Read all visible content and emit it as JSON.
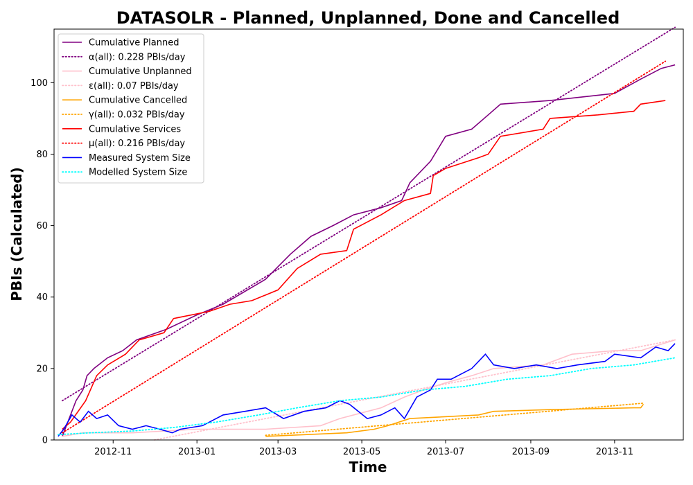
{
  "chart_data": {
    "type": "line",
    "title": "DATASOLR - Planned, Unplanned, Done  and Cancelled",
    "xlabel": "Time",
    "ylabel": "PBIs (Calculated)",
    "xlim": [
      "2012-09-19",
      "2013-12-21"
    ],
    "ylim": [
      0,
      115
    ],
    "xticks": [
      "2012-11",
      "2013-01",
      "2013-03",
      "2013-05",
      "2013-07",
      "2013-09",
      "2013-11"
    ],
    "yticks": [
      0,
      20,
      40,
      60,
      80,
      100
    ],
    "grid": false,
    "legend_position": "top-left",
    "series": [
      {
        "name": "Cumulative Planned",
        "color": "#800080",
        "style": "solid",
        "x": [
          "2012-09-25",
          "2012-09-30",
          "2012-10-05",
          "2012-10-10",
          "2012-10-13",
          "2012-10-18",
          "2012-10-28",
          "2012-11-08",
          "2012-11-18",
          "2012-12-10",
          "2013-01-01",
          "2013-01-20",
          "2013-02-20",
          "2013-03-10",
          "2013-03-25",
          "2013-04-10",
          "2013-04-25",
          "2013-05-15",
          "2013-05-30",
          "2013-06-05",
          "2013-06-20",
          "2013-07-01",
          "2013-07-20",
          "2013-08-01",
          "2013-08-10",
          "2013-09-15",
          "2013-11-01",
          "2013-11-20",
          "2013-12-05",
          "2013-12-15"
        ],
        "values": [
          1,
          6,
          11,
          14,
          18,
          20,
          23,
          25,
          28,
          31,
          35,
          38,
          45,
          52,
          57,
          60,
          63,
          65,
          67,
          72,
          78,
          85,
          87,
          91,
          94,
          95,
          97,
          101,
          104,
          105
        ]
      },
      {
        "name": "α(all): 0.228 PBIs/day",
        "color": "#800080",
        "style": "dotted",
        "x": [
          "2012-09-25",
          "2013-12-15"
        ],
        "values": [
          11,
          115.5
        ]
      },
      {
        "name": "Cumulative Unplanned",
        "color": "#ffc0cb",
        "style": "solid",
        "x": [
          "2012-09-25",
          "2012-10-10",
          "2012-11-15",
          "2013-01-01",
          "2013-02-20",
          "2013-04-01",
          "2013-04-15",
          "2013-05-15",
          "2013-06-01",
          "2013-06-15",
          "2013-07-01",
          "2013-07-20",
          "2013-08-05",
          "2013-09-10",
          "2013-10-01",
          "2013-11-01",
          "2013-11-20",
          "2013-12-15"
        ],
        "values": [
          1,
          2,
          2,
          3,
          3,
          4,
          6,
          9,
          12,
          14,
          16,
          18,
          20,
          21,
          24,
          25,
          25,
          28
        ]
      },
      {
        "name": "ε(all): 0.07 PBIs/day",
        "color": "#ffc0cb",
        "style": "dotted",
        "x": [
          "2012-12-01",
          "2013-12-15"
        ],
        "values": [
          0,
          28
        ]
      },
      {
        "name": "Cumulative Cancelled",
        "color": "#ffa500",
        "style": "solid",
        "x": [
          "2013-02-20",
          "2013-04-20",
          "2013-05-10",
          "2013-05-20",
          "2013-06-05",
          "2013-07-25",
          "2013-08-05",
          "2013-09-15",
          "2013-11-15",
          "2013-11-20",
          "2013-11-22"
        ],
        "values": [
          1,
          2,
          3,
          4,
          6,
          7,
          8,
          8.5,
          9,
          9,
          10
        ]
      },
      {
        "name": "γ(all): 0.032 PBIs/day",
        "color": "#ffa500",
        "style": "dotted",
        "x": [
          "2013-02-20",
          "2013-11-22"
        ],
        "values": [
          1.3,
          10.3
        ]
      },
      {
        "name": "Cumulative Services",
        "color": "#ff0000",
        "style": "solid",
        "x": [
          "2012-09-25",
          "2012-10-01",
          "2012-10-12",
          "2012-10-20",
          "2012-10-28",
          "2012-11-10",
          "2012-11-20",
          "2012-12-08",
          "2012-12-15",
          "2013-01-10",
          "2013-01-25",
          "2013-02-10",
          "2013-03-01",
          "2013-03-15",
          "2013-04-01",
          "2013-04-20",
          "2013-04-25",
          "2013-05-15",
          "2013-06-01",
          "2013-06-20",
          "2013-06-22",
          "2013-07-01",
          "2013-07-25",
          "2013-08-01",
          "2013-08-10",
          "2013-09-10",
          "2013-09-15",
          "2013-10-20",
          "2013-11-15",
          "2013-11-20",
          "2013-12-08"
        ],
        "values": [
          3,
          5,
          11,
          18,
          21,
          24,
          28,
          30,
          34,
          36,
          38,
          39,
          42,
          48,
          52,
          53,
          59,
          63,
          67,
          69,
          74,
          76,
          79,
          80,
          85,
          87,
          90,
          91,
          92,
          94,
          95
        ]
      },
      {
        "name": "μ(all): 0.216 PBIs/day",
        "color": "#ff0000",
        "style": "dotted",
        "x": [
          "2012-09-25",
          "2013-12-08"
        ],
        "values": [
          2,
          106
        ]
      },
      {
        "name": "Measured System Size",
        "color": "#0000ff",
        "style": "solid",
        "x": [
          "2012-09-22",
          "2012-09-26",
          "2012-10-02",
          "2012-10-08",
          "2012-10-14",
          "2012-10-20",
          "2012-10-28",
          "2012-11-05",
          "2012-11-15",
          "2012-11-25",
          "2012-12-05",
          "2012-12-14",
          "2012-12-20",
          "2013-01-05",
          "2013-01-20",
          "2013-02-05",
          "2013-02-20",
          "2013-03-05",
          "2013-03-20",
          "2013-04-05",
          "2013-04-15",
          "2013-04-22",
          "2013-05-05",
          "2013-05-15",
          "2013-05-25",
          "2013-06-01",
          "2013-06-10",
          "2013-06-20",
          "2013-06-25",
          "2013-07-05",
          "2013-07-20",
          "2013-07-30",
          "2013-08-05",
          "2013-08-20",
          "2013-09-05",
          "2013-09-20",
          "2013-10-05",
          "2013-10-25",
          "2013-11-01",
          "2013-11-20",
          "2013-12-01",
          "2013-12-10",
          "2013-12-15"
        ],
        "values": [
          1,
          3,
          7,
          5,
          8,
          6,
          7,
          4,
          3,
          4,
          3,
          2,
          3,
          4,
          7,
          8,
          9,
          6,
          8,
          9,
          11,
          10,
          6,
          7,
          9,
          6,
          12,
          14,
          17,
          17,
          20,
          24,
          21,
          20,
          21,
          20,
          21,
          22,
          24,
          23,
          26,
          25,
          27
        ]
      },
      {
        "name": "Modelled System Size",
        "color": "#00ffff",
        "style": "dotted",
        "x": [
          "2012-09-22",
          "2012-10-15",
          "2012-11-15",
          "2012-12-15",
          "2013-01-15",
          "2013-02-15",
          "2013-03-15",
          "2013-04-15",
          "2013-05-15",
          "2013-06-15",
          "2013-07-15",
          "2013-08-15",
          "2013-09-15",
          "2013-10-15",
          "2013-11-15",
          "2013-12-15"
        ],
        "values": [
          1.5,
          2,
          2.5,
          3.5,
          5,
          7,
          9,
          11,
          12,
          14,
          15,
          17,
          18,
          20,
          21,
          23
        ]
      }
    ]
  }
}
